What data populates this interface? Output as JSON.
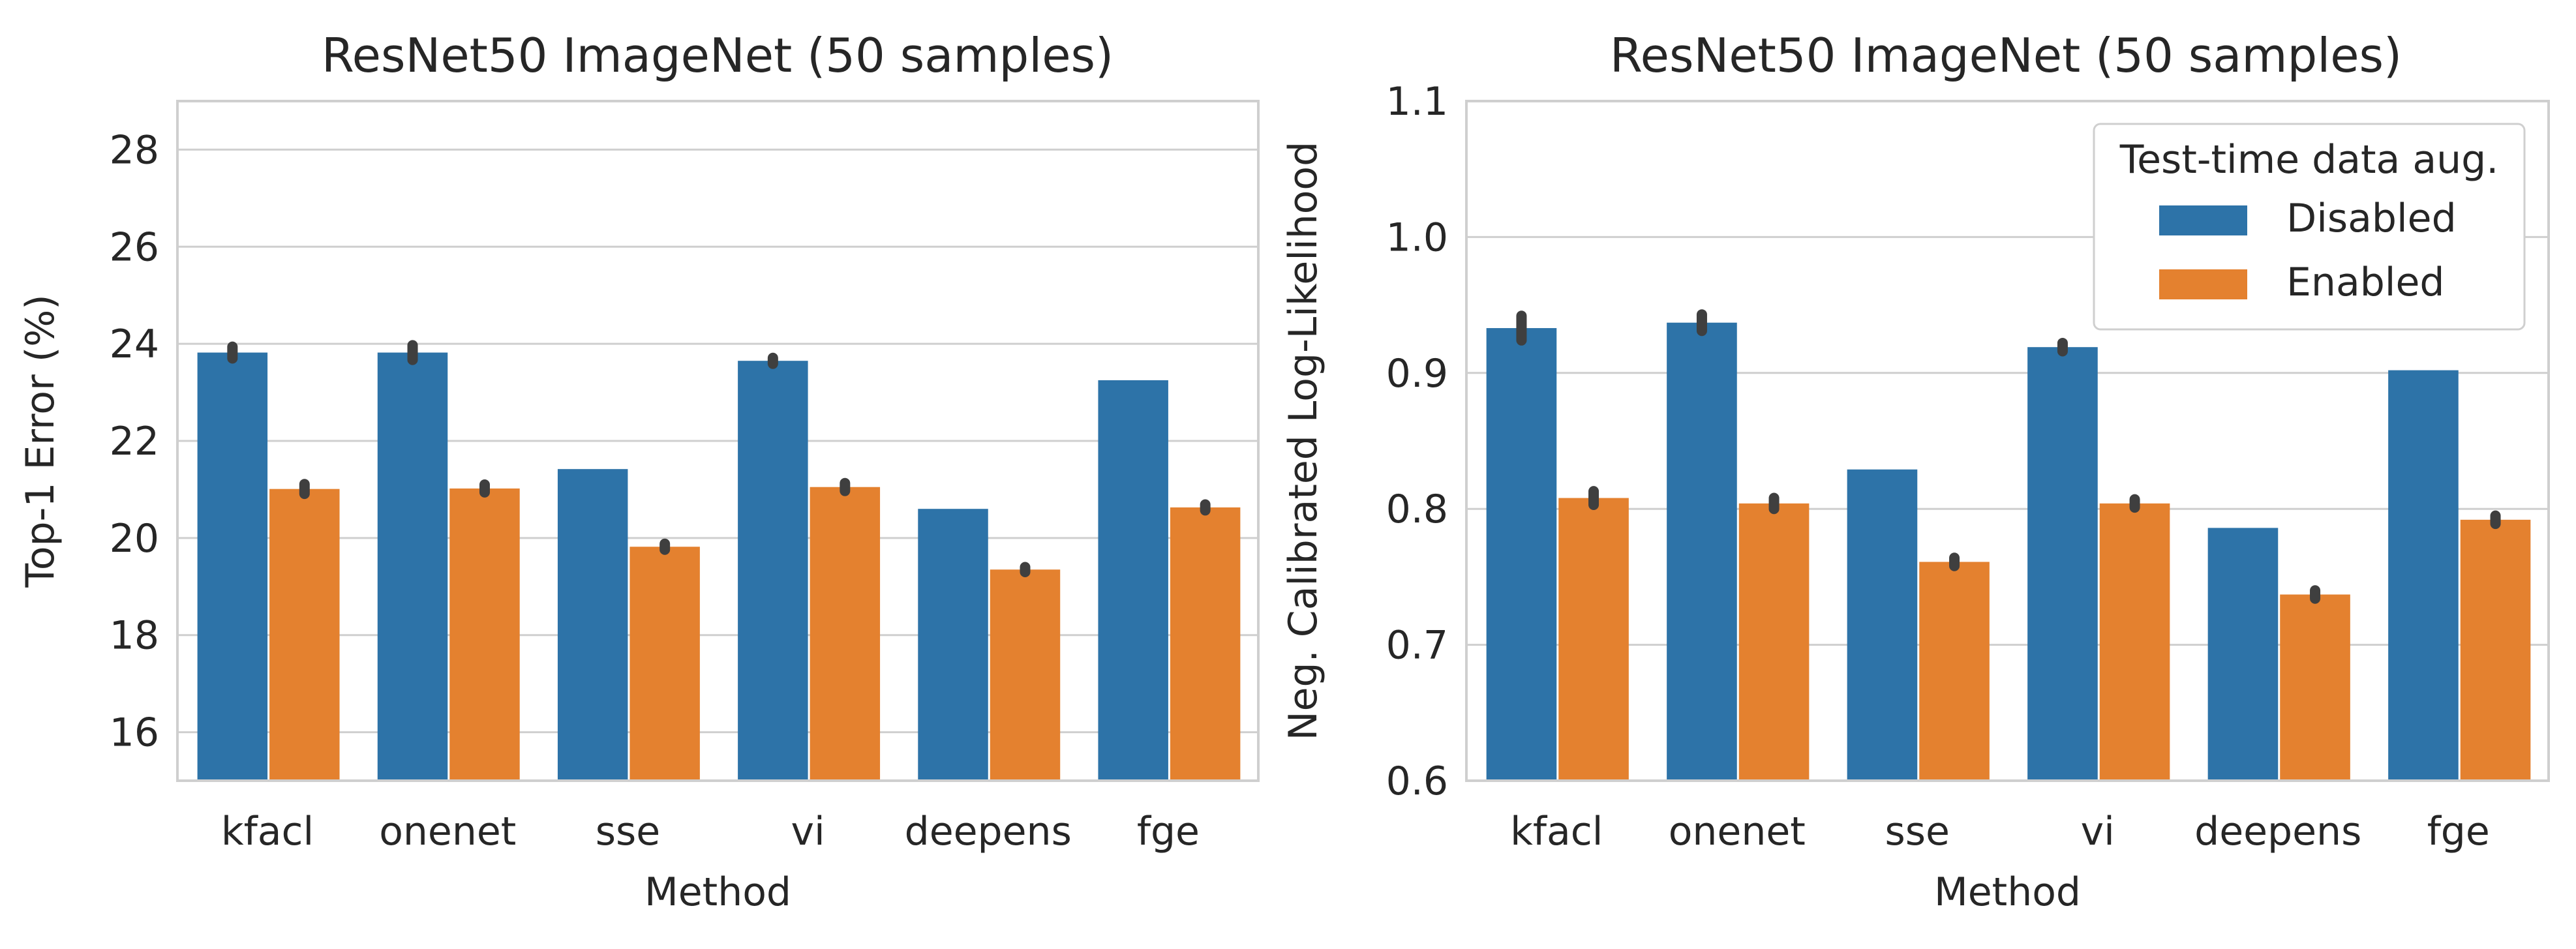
{
  "chart_data": [
    {
      "type": "bar",
      "title": "ResNet50 ImageNet (50 samples)",
      "xlabel": "Method",
      "ylabel": "Top-1 Error (%)",
      "categories": [
        "kfacl",
        "onenet",
        "sse",
        "vi",
        "deepens",
        "fge"
      ],
      "ylim": [
        15,
        29
      ],
      "yticks": [
        16,
        18,
        20,
        22,
        24,
        26,
        28
      ],
      "grid": true,
      "series": [
        {
          "name": "Disabled",
          "color": "#2d73a8",
          "values": [
            23.82,
            23.82,
            21.42,
            23.65,
            20.6,
            23.25
          ],
          "error": [
            0.12,
            0.15,
            0,
            0.06,
            0,
            0
          ]
        },
        {
          "name": "Enabled",
          "color": "#e4812f",
          "values": [
            21.01,
            21.02,
            19.82,
            21.05,
            19.35,
            20.63
          ],
          "error": [
            0.1,
            0.08,
            0.06,
            0.08,
            0.05,
            0.06
          ]
        }
      ]
    },
    {
      "type": "bar",
      "title": "ResNet50 ImageNet (50 samples)",
      "xlabel": "Method",
      "ylabel": "Neg. Calibrated Log-Likelihood",
      "categories": [
        "kfacl",
        "onenet",
        "sse",
        "vi",
        "deepens",
        "fge"
      ],
      "ylim": [
        0.6,
        1.1
      ],
      "yticks": [
        0.6,
        0.7,
        0.8,
        0.9,
        1.0,
        1.1
      ],
      "ytick_labels": [
        "0.6",
        "0.7",
        "0.8",
        "0.9",
        "1.0",
        "1.1"
      ],
      "grid": true,
      "legend": {
        "title": "Test-time data aug.",
        "placement": "top-right",
        "entries": [
          "Disabled",
          "Enabled"
        ]
      },
      "series": [
        {
          "name": "Disabled",
          "color": "#2d73a8",
          "values": [
            0.933,
            0.937,
            0.829,
            0.919,
            0.786,
            0.902
          ],
          "error": [
            0.009,
            0.006,
            0,
            0.003,
            0,
            0
          ]
        },
        {
          "name": "Enabled",
          "color": "#e4812f",
          "values": [
            0.808,
            0.804,
            0.761,
            0.804,
            0.737,
            0.792
          ],
          "error": [
            0.005,
            0.004,
            0.003,
            0.003,
            0.003,
            0.003
          ]
        }
      ]
    }
  ]
}
